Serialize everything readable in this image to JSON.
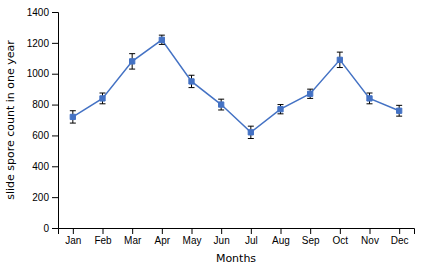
{
  "chart_data": {
    "type": "line",
    "categories": [
      "Jan",
      "Feb",
      "Mar",
      "Apr",
      "May",
      "Jun",
      "Jul",
      "Aug",
      "Sep",
      "Oct",
      "Nov",
      "Dec"
    ],
    "values": [
      720,
      840,
      1080,
      1220,
      950,
      800,
      620,
      770,
      870,
      1090,
      840,
      760
    ],
    "errors": [
      40,
      35,
      50,
      30,
      40,
      35,
      40,
      30,
      30,
      50,
      35,
      35
    ],
    "color": "#4472C4",
    "marker": "square",
    "xlabel": "Months",
    "ylabel": "slide spore count in one year",
    "ylim": [
      0,
      1400
    ],
    "yticks": [
      0,
      200,
      400,
      600,
      800,
      1000,
      1200,
      1400
    ],
    "grid": false
  }
}
